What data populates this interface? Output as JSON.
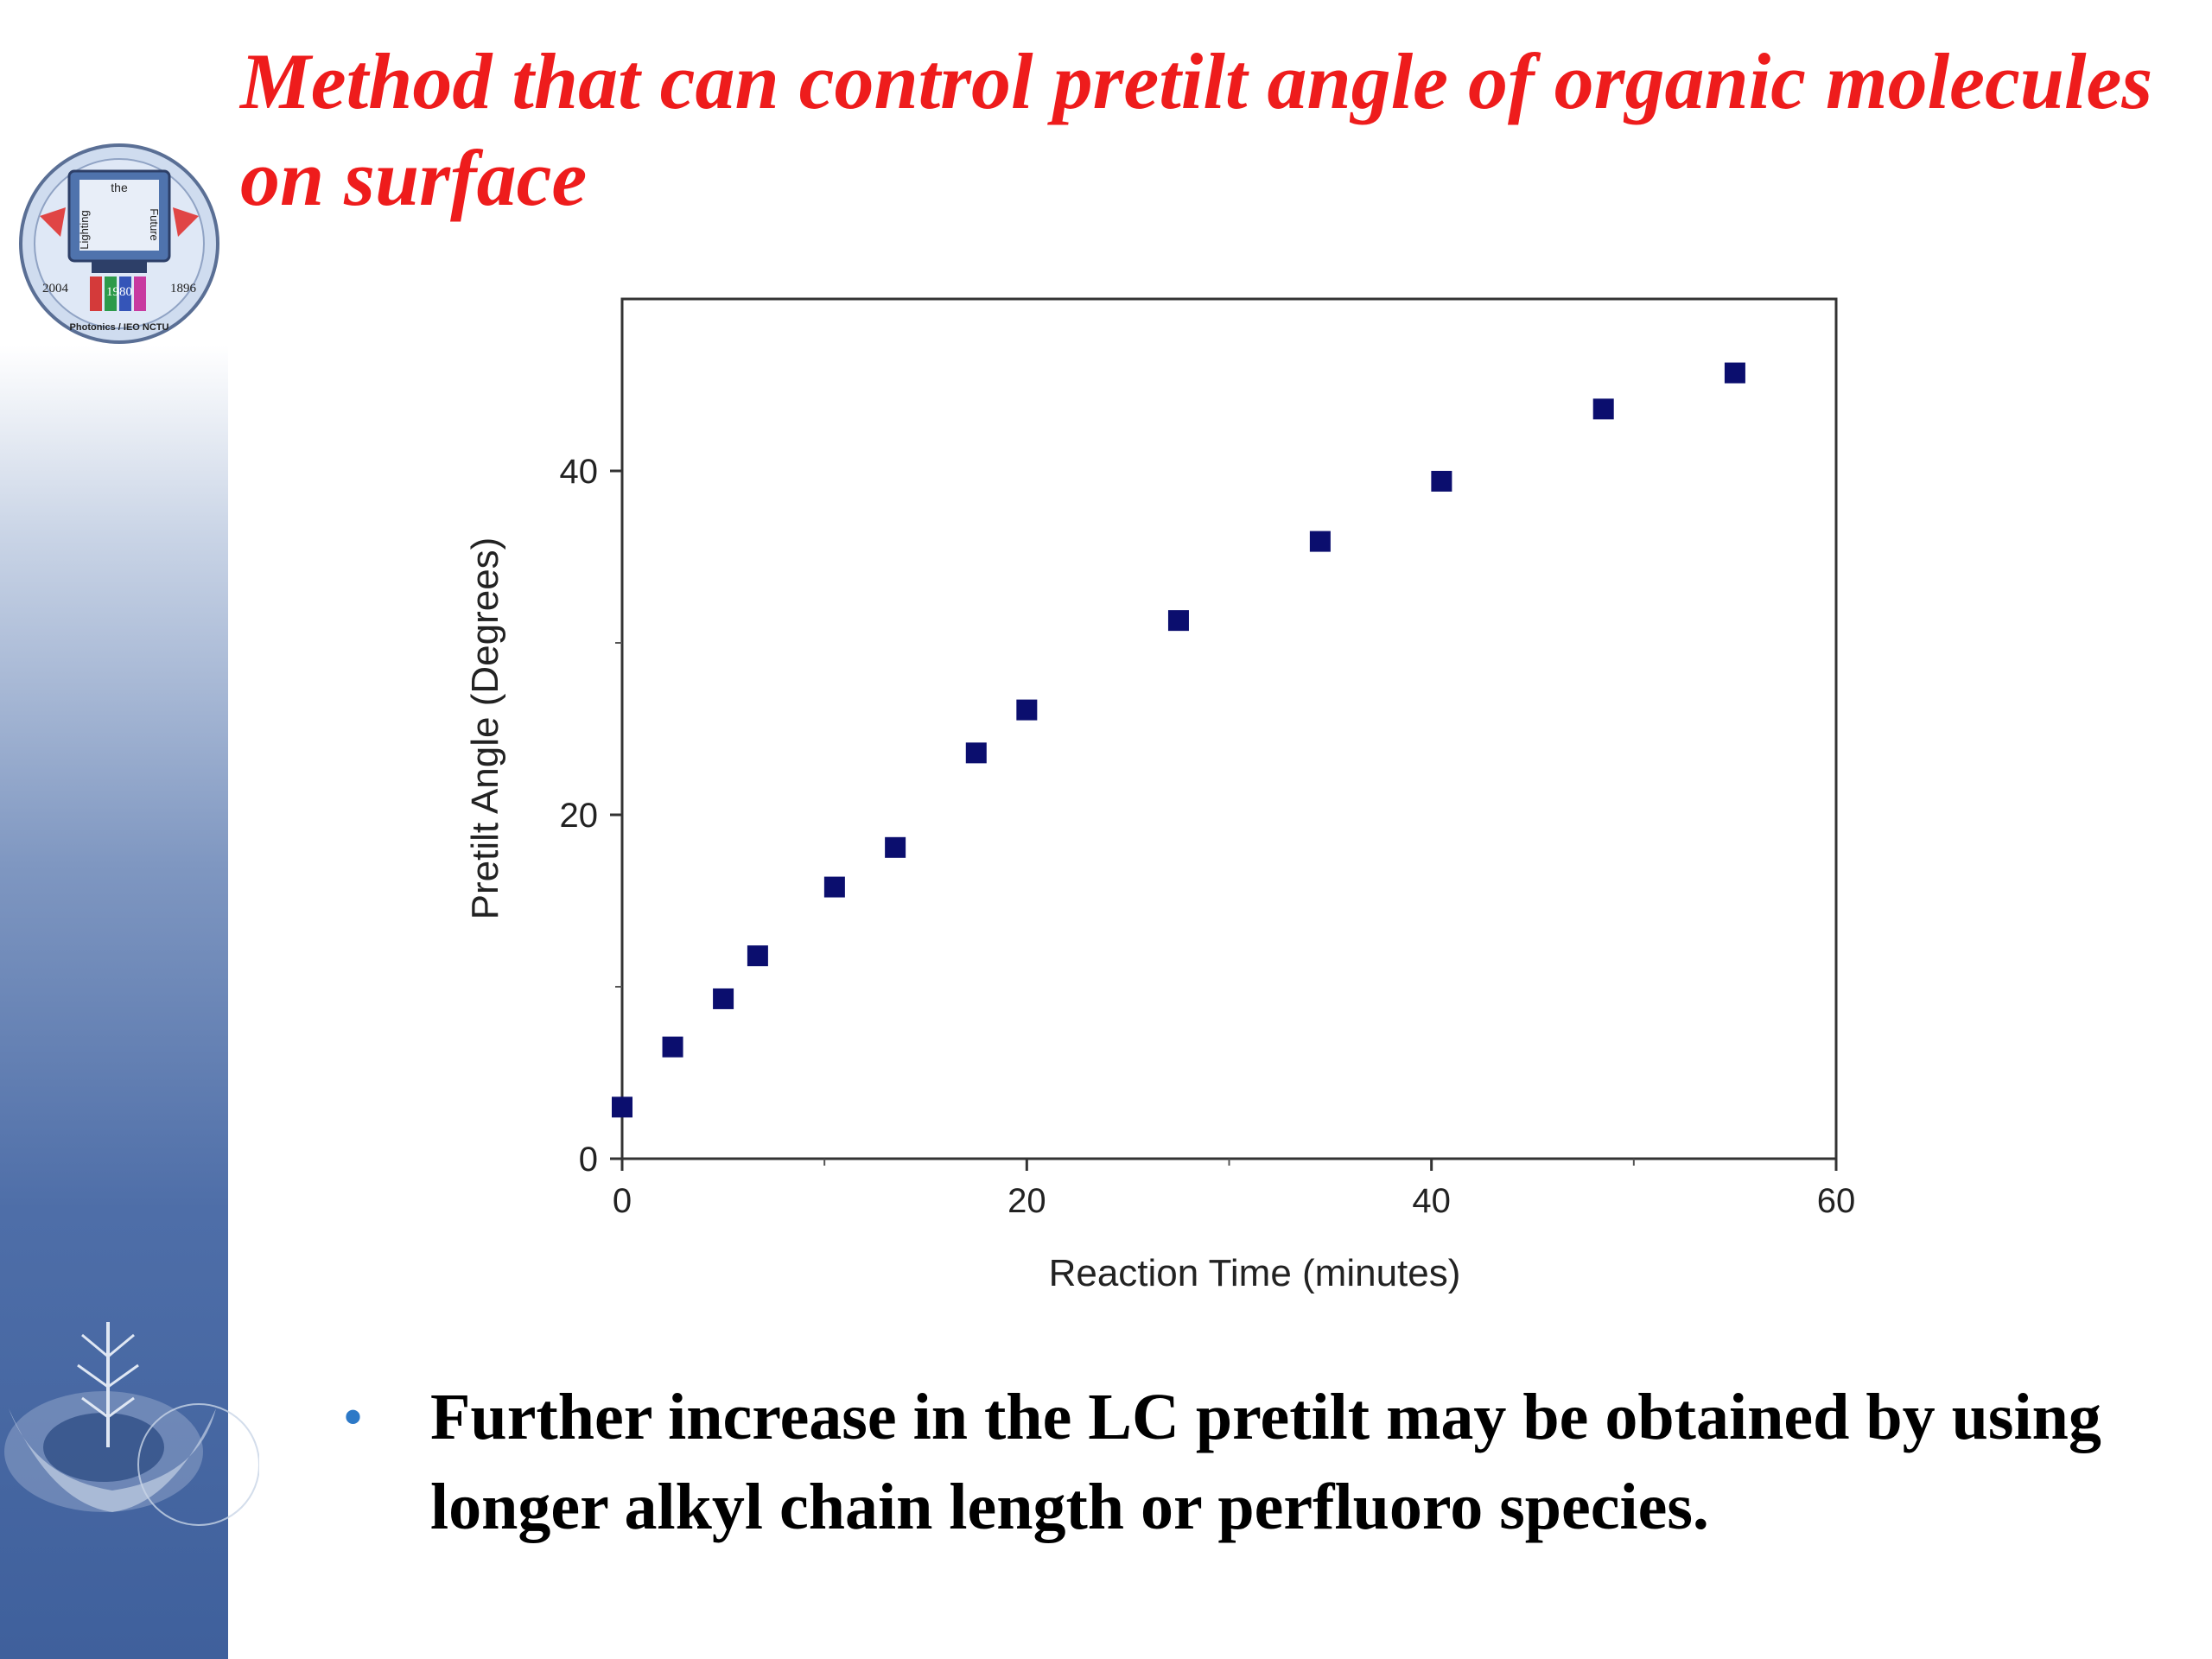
{
  "slide": {
    "title": "Method that can control pretilt angle of organic molecules on surface",
    "bullet": "Further increase in the LC pretilt may be obtained by using longer alkyl chain length or perfluoro species.",
    "logo": {
      "top_text": "the",
      "left_text": "Lighting",
      "right_text": "Future",
      "year_left": "2004",
      "year_center": "1980",
      "year_right": "1896",
      "bottom_text": "Photonics / IEO  NCTU"
    },
    "colors": {
      "title": "#ee1c1c",
      "marker": "#0b0e6e",
      "bullet": "#2d79c7"
    }
  },
  "chart_data": {
    "type": "scatter",
    "xlabel": "Reaction Time (minutes)",
    "ylabel": "Pretilt Angle (Degrees)",
    "xlim": [
      0,
      60
    ],
    "ylim": [
      0,
      50
    ],
    "x_ticks": [
      0,
      20,
      40,
      60
    ],
    "y_ticks": [
      0,
      20,
      40
    ],
    "x_minor_ticks": [
      10,
      30,
      50
    ],
    "y_minor_ticks": [
      10,
      30
    ],
    "grid": false,
    "x": [
      0,
      2.5,
      5,
      6.7,
      10.5,
      13.5,
      17.5,
      20,
      27.5,
      34.5,
      40.5,
      48.5,
      55
    ],
    "y": [
      3,
      6.5,
      9.3,
      11.8,
      15.8,
      18.1,
      23.6,
      26.1,
      31.3,
      35.9,
      39.4,
      43.6,
      45.7
    ]
  }
}
